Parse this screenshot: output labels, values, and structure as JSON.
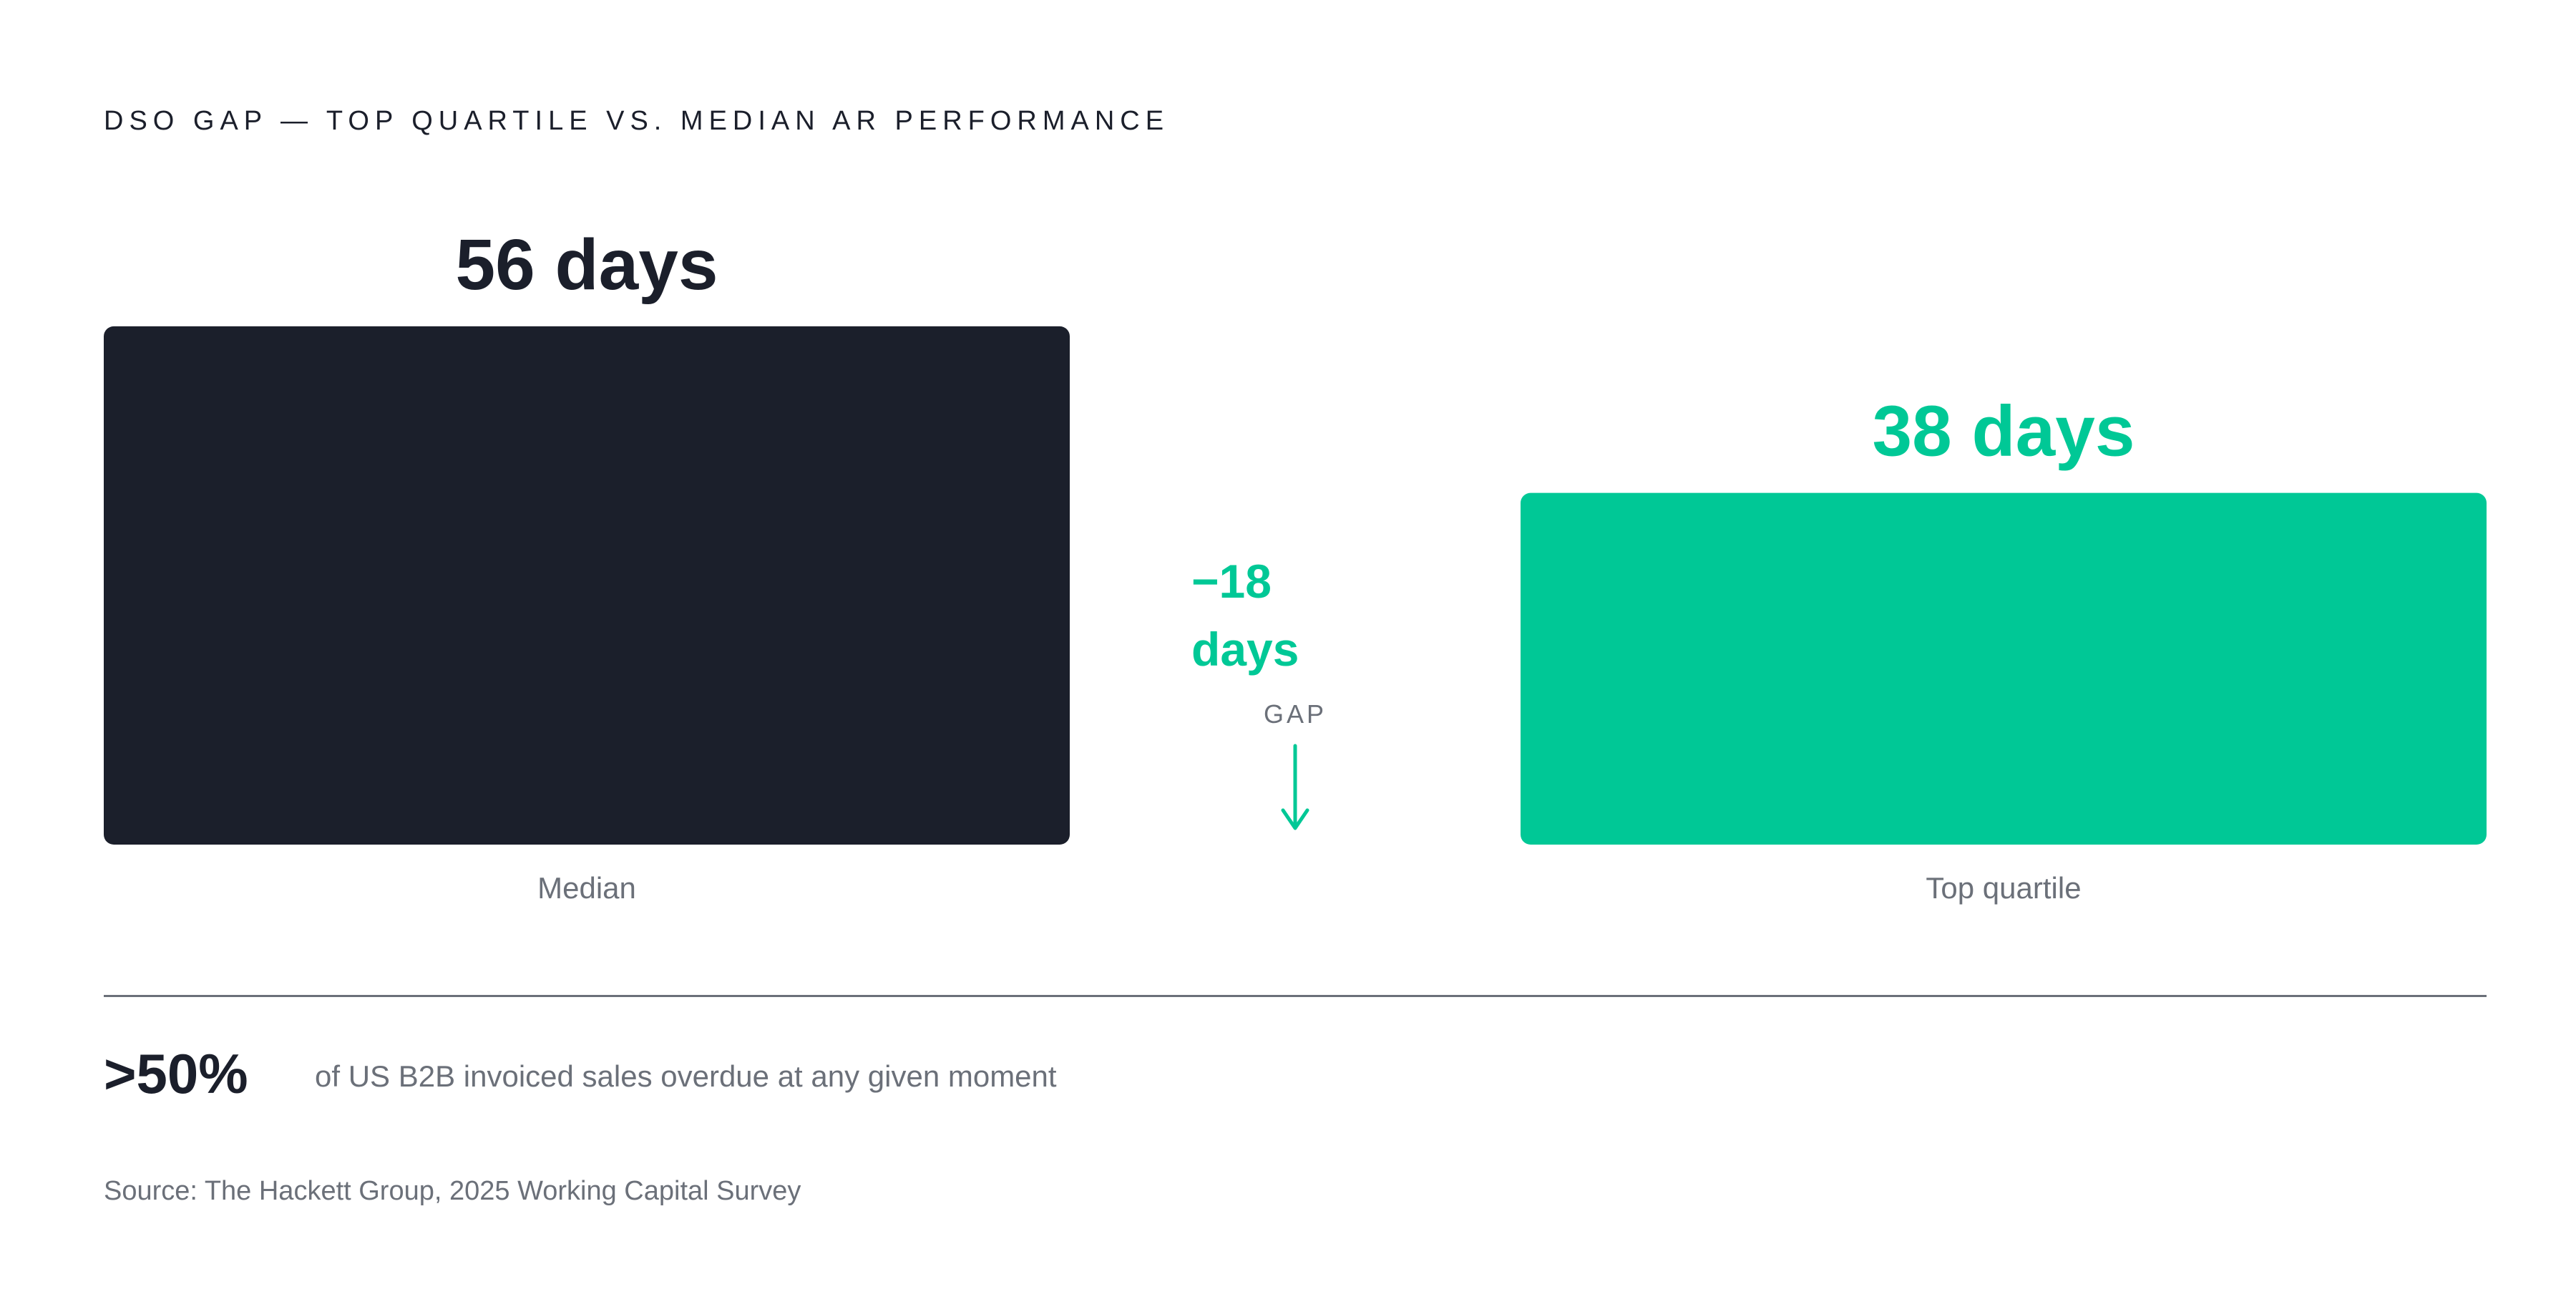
{
  "eyebrow": "DSO GAP — TOP QUARTILE VS. MEDIAN AR PERFORMANCE",
  "chart_data": {
    "type": "bar",
    "categories": [
      "Median",
      "Top quartile"
    ],
    "values": [
      56,
      38
    ],
    "value_labels": [
      "56 days",
      "38 days"
    ],
    "unit": "days",
    "colors": [
      "#1b1f2b",
      "#00c896"
    ],
    "label_colors": [
      "#1b1f2b",
      "#00c896"
    ],
    "gap": {
      "value": -18,
      "label_line1": "−18",
      "label_line2": "days",
      "caption": "GAP",
      "color": "#00c896"
    }
  },
  "stat": {
    "value": ">50%",
    "description": "of US B2B invoiced sales overdue at any given moment"
  },
  "source": "Source: The Hackett Group, 2025 Working Capital Survey"
}
